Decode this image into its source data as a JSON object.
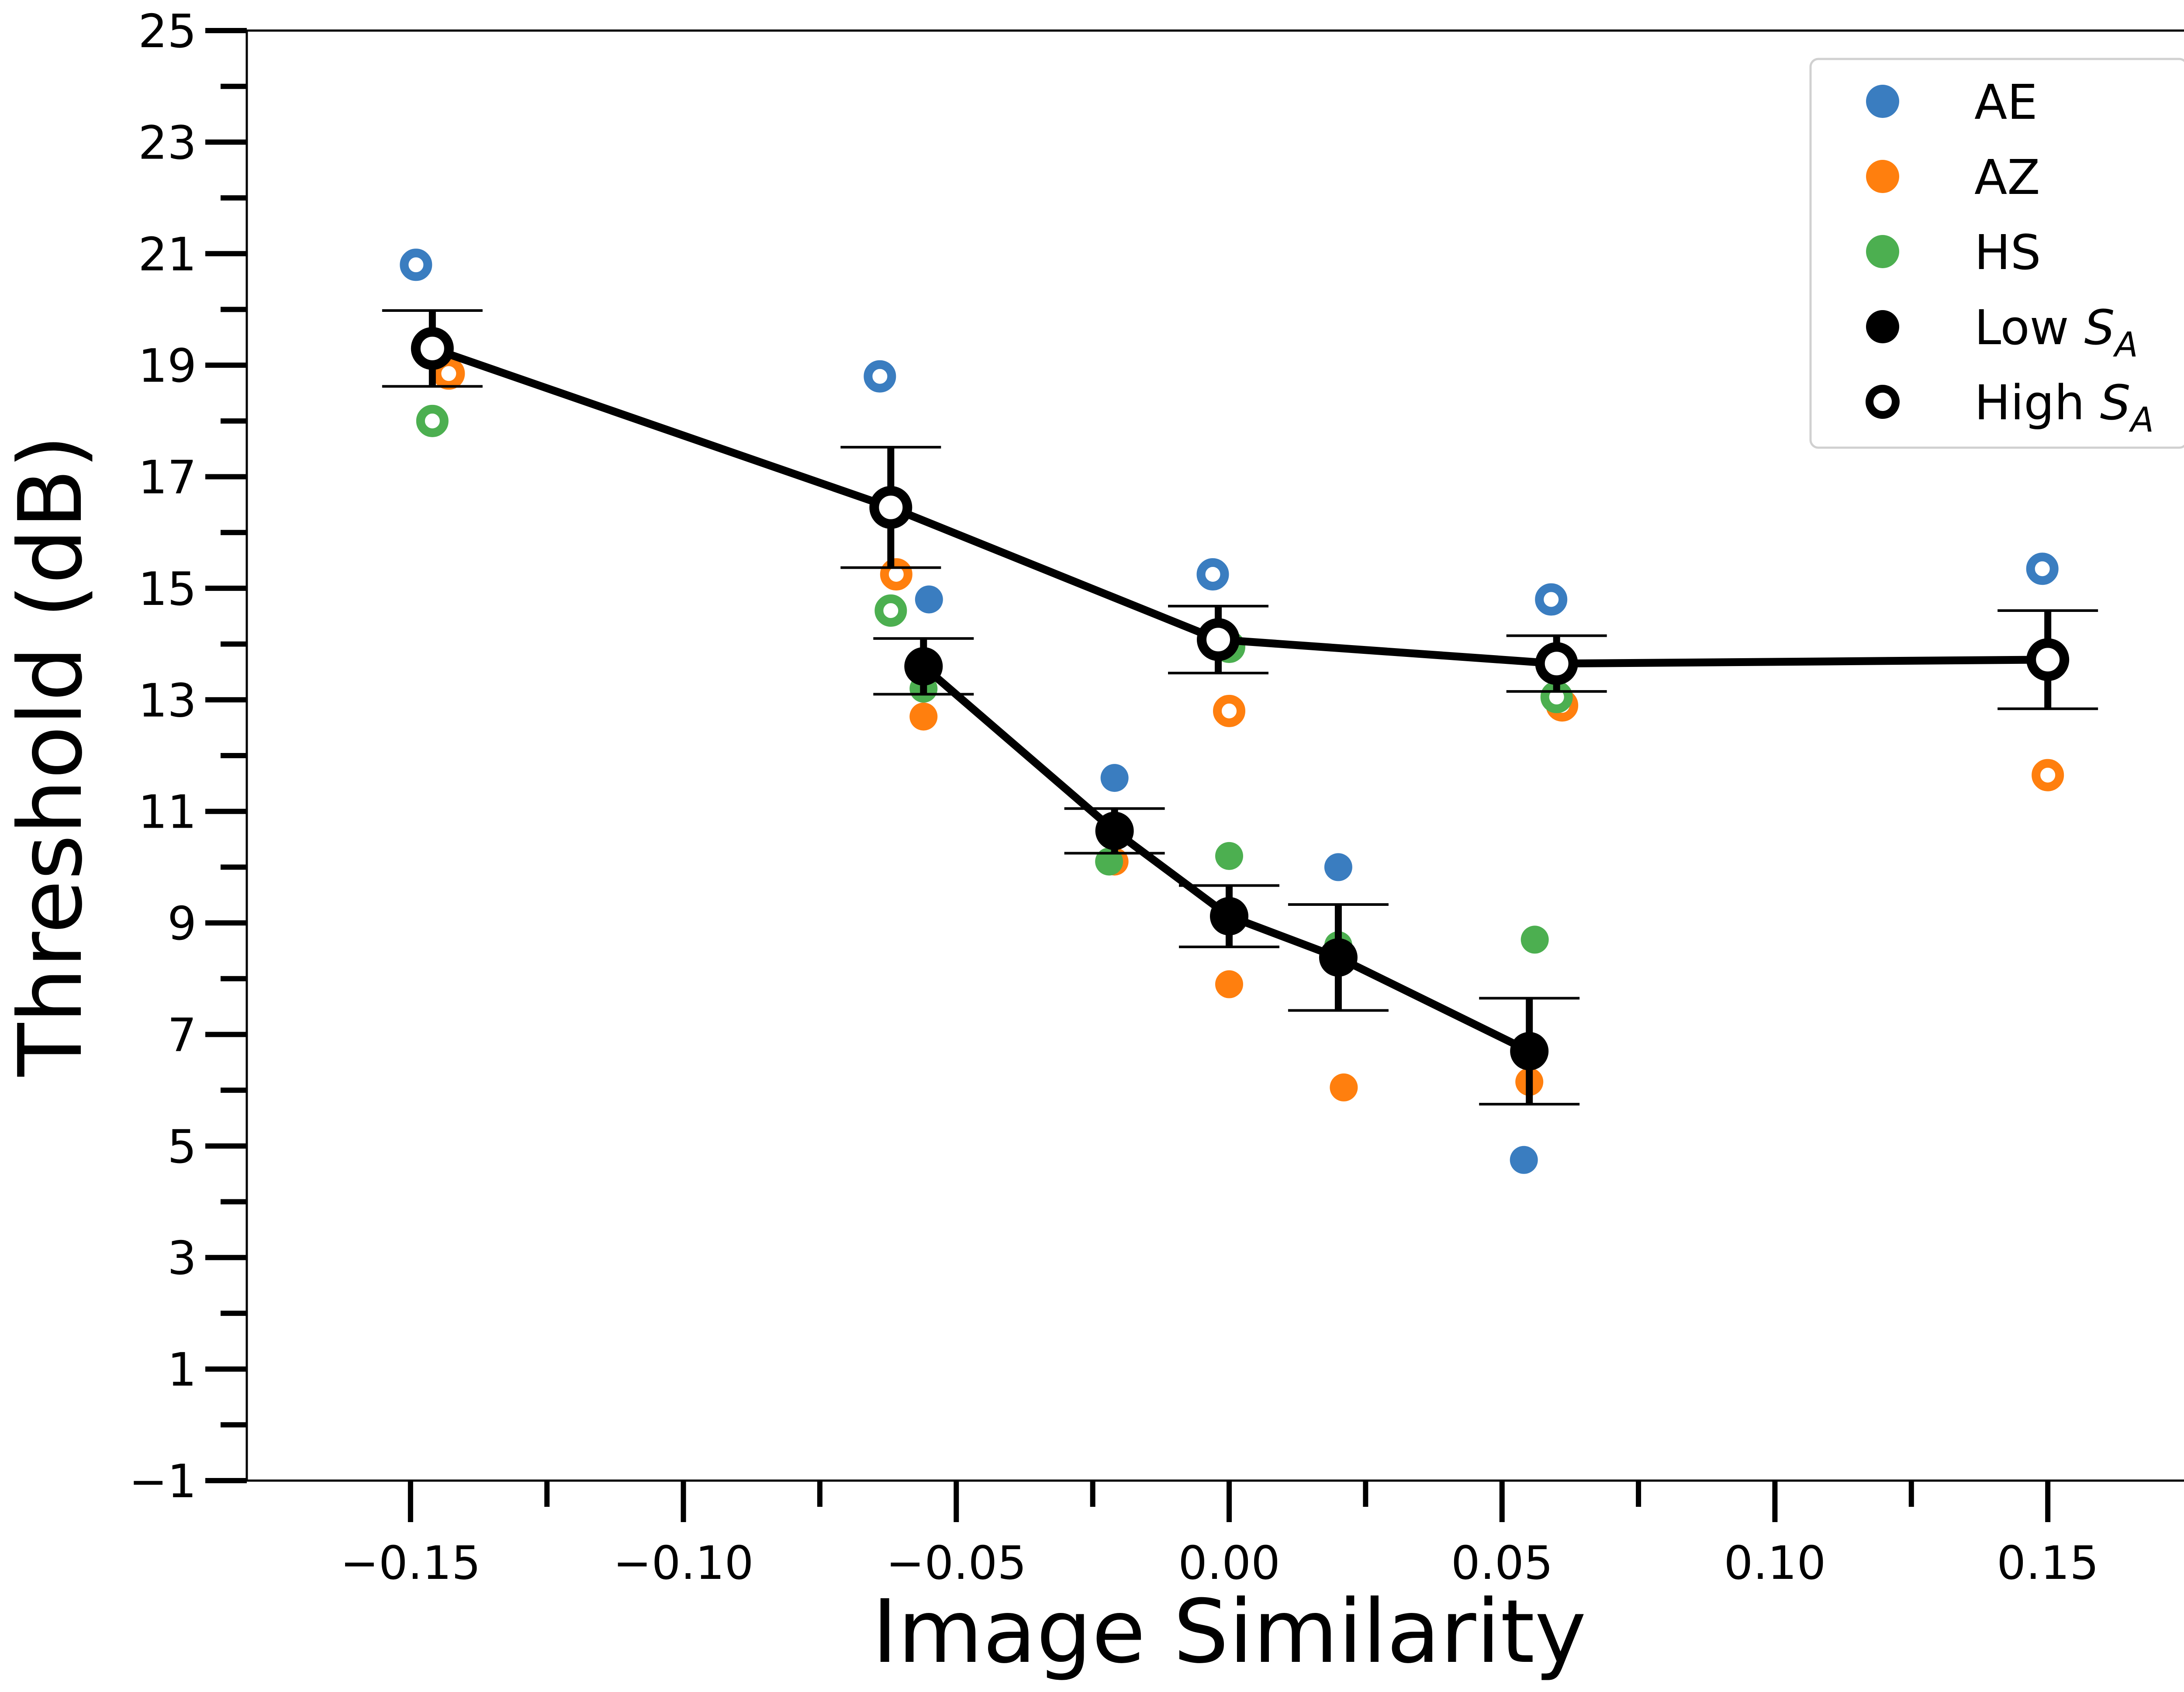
{
  "chart_data": {
    "type": "scatter",
    "xlabel": "Image Similarity",
    "ylabel": "Threshold (dB)",
    "xlim": [
      -0.18,
      0.18
    ],
    "ylim": [
      -1,
      25
    ],
    "x_ticks": [
      -0.15,
      -0.1,
      -0.05,
      0.0,
      0.05,
      0.1,
      0.15
    ],
    "x_tick_labels": [
      "−0.15",
      "−0.10",
      "−0.05",
      "0.00",
      "0.05",
      "0.10",
      "0.15"
    ],
    "x_minor_ticks": [
      -0.125,
      -0.075,
      -0.025,
      0.025,
      0.075,
      0.125
    ],
    "y_ticks": [
      -1,
      1,
      3,
      5,
      7,
      9,
      11,
      13,
      15,
      17,
      19,
      21,
      23,
      25
    ],
    "y_tick_labels": [
      "−1",
      "1",
      "3",
      "5",
      "7",
      "9",
      "11",
      "13",
      "15",
      "17",
      "19",
      "21",
      "23",
      "25"
    ],
    "y_minor_ticks": [
      0,
      2,
      4,
      6,
      8,
      10,
      12,
      14,
      16,
      18,
      20,
      22,
      24
    ],
    "grid": false,
    "legend_position": "top-right",
    "colors": {
      "AE": "#3a7dc0",
      "AZ": "#ff7f0e",
      "HS": "#4caf50",
      "mean": "#000000"
    },
    "legend": [
      {
        "label": "AE",
        "sub": "",
        "style": "filled",
        "color": "#3a7dc0"
      },
      {
        "label": "AZ",
        "sub": "",
        "style": "filled",
        "color": "#ff7f0e"
      },
      {
        "label": "HS",
        "sub": "",
        "style": "filled",
        "color": "#4caf50"
      },
      {
        "label": "Low S",
        "sub": "A",
        "style": "filled",
        "color": "#000000"
      },
      {
        "label": "High S",
        "sub": "A",
        "style": "open",
        "color": "#000000"
      }
    ],
    "subjects": [
      {
        "name": "AE",
        "color": "#3a7dc0",
        "low": [
          [
            -0.055,
            14.8
          ],
          [
            -0.021,
            11.6
          ],
          [
            0.02,
            10.0
          ],
          [
            0.054,
            4.75
          ]
        ],
        "high": [
          [
            -0.149,
            20.8
          ],
          [
            -0.064,
            18.8
          ],
          [
            -0.003,
            15.25
          ],
          [
            0.059,
            14.8
          ],
          [
            0.149,
            15.35
          ]
        ]
      },
      {
        "name": "AZ",
        "color": "#ff7f0e",
        "low": [
          [
            -0.056,
            12.7
          ],
          [
            -0.021,
            10.1
          ],
          [
            0.0,
            7.9
          ],
          [
            0.021,
            6.05
          ],
          [
            0.055,
            6.15
          ]
        ],
        "high": [
          [
            -0.143,
            18.85
          ],
          [
            -0.061,
            15.25
          ],
          [
            0.0,
            12.8
          ],
          [
            0.061,
            12.9
          ],
          [
            0.15,
            11.65
          ]
        ]
      },
      {
        "name": "HS",
        "color": "#4caf50",
        "low": [
          [
            -0.056,
            13.2
          ],
          [
            -0.022,
            10.1
          ],
          [
            0.0,
            10.2
          ],
          [
            0.02,
            8.6
          ],
          [
            0.056,
            8.7
          ]
        ],
        "high": [
          [
            -0.146,
            18.0
          ],
          [
            -0.062,
            14.6
          ],
          [
            0.0,
            13.95
          ],
          [
            0.06,
            13.05
          ],
          [
            0.15,
            13.75
          ]
        ]
      }
    ],
    "means": [
      {
        "name": "Low S_A",
        "style": "filled",
        "points": [
          {
            "x": -0.056,
            "y": 13.6,
            "err": 0.5
          },
          {
            "x": -0.021,
            "y": 10.65,
            "err": 0.4
          },
          {
            "x": 0.0,
            "y": 9.12,
            "err": 0.55
          },
          {
            "x": 0.02,
            "y": 8.38,
            "err": 0.95
          },
          {
            "x": 0.055,
            "y": 6.7,
            "err": 0.95
          }
        ]
      },
      {
        "name": "High S_A",
        "style": "open",
        "points": [
          {
            "x": -0.146,
            "y": 19.3,
            "err": 0.68
          },
          {
            "x": -0.062,
            "y": 16.45,
            "err": 1.08
          },
          {
            "x": -0.002,
            "y": 14.08,
            "err": 0.6
          },
          {
            "x": 0.06,
            "y": 13.65,
            "err": 0.5
          },
          {
            "x": 0.15,
            "y": 13.72,
            "err": 0.88
          }
        ]
      }
    ]
  }
}
